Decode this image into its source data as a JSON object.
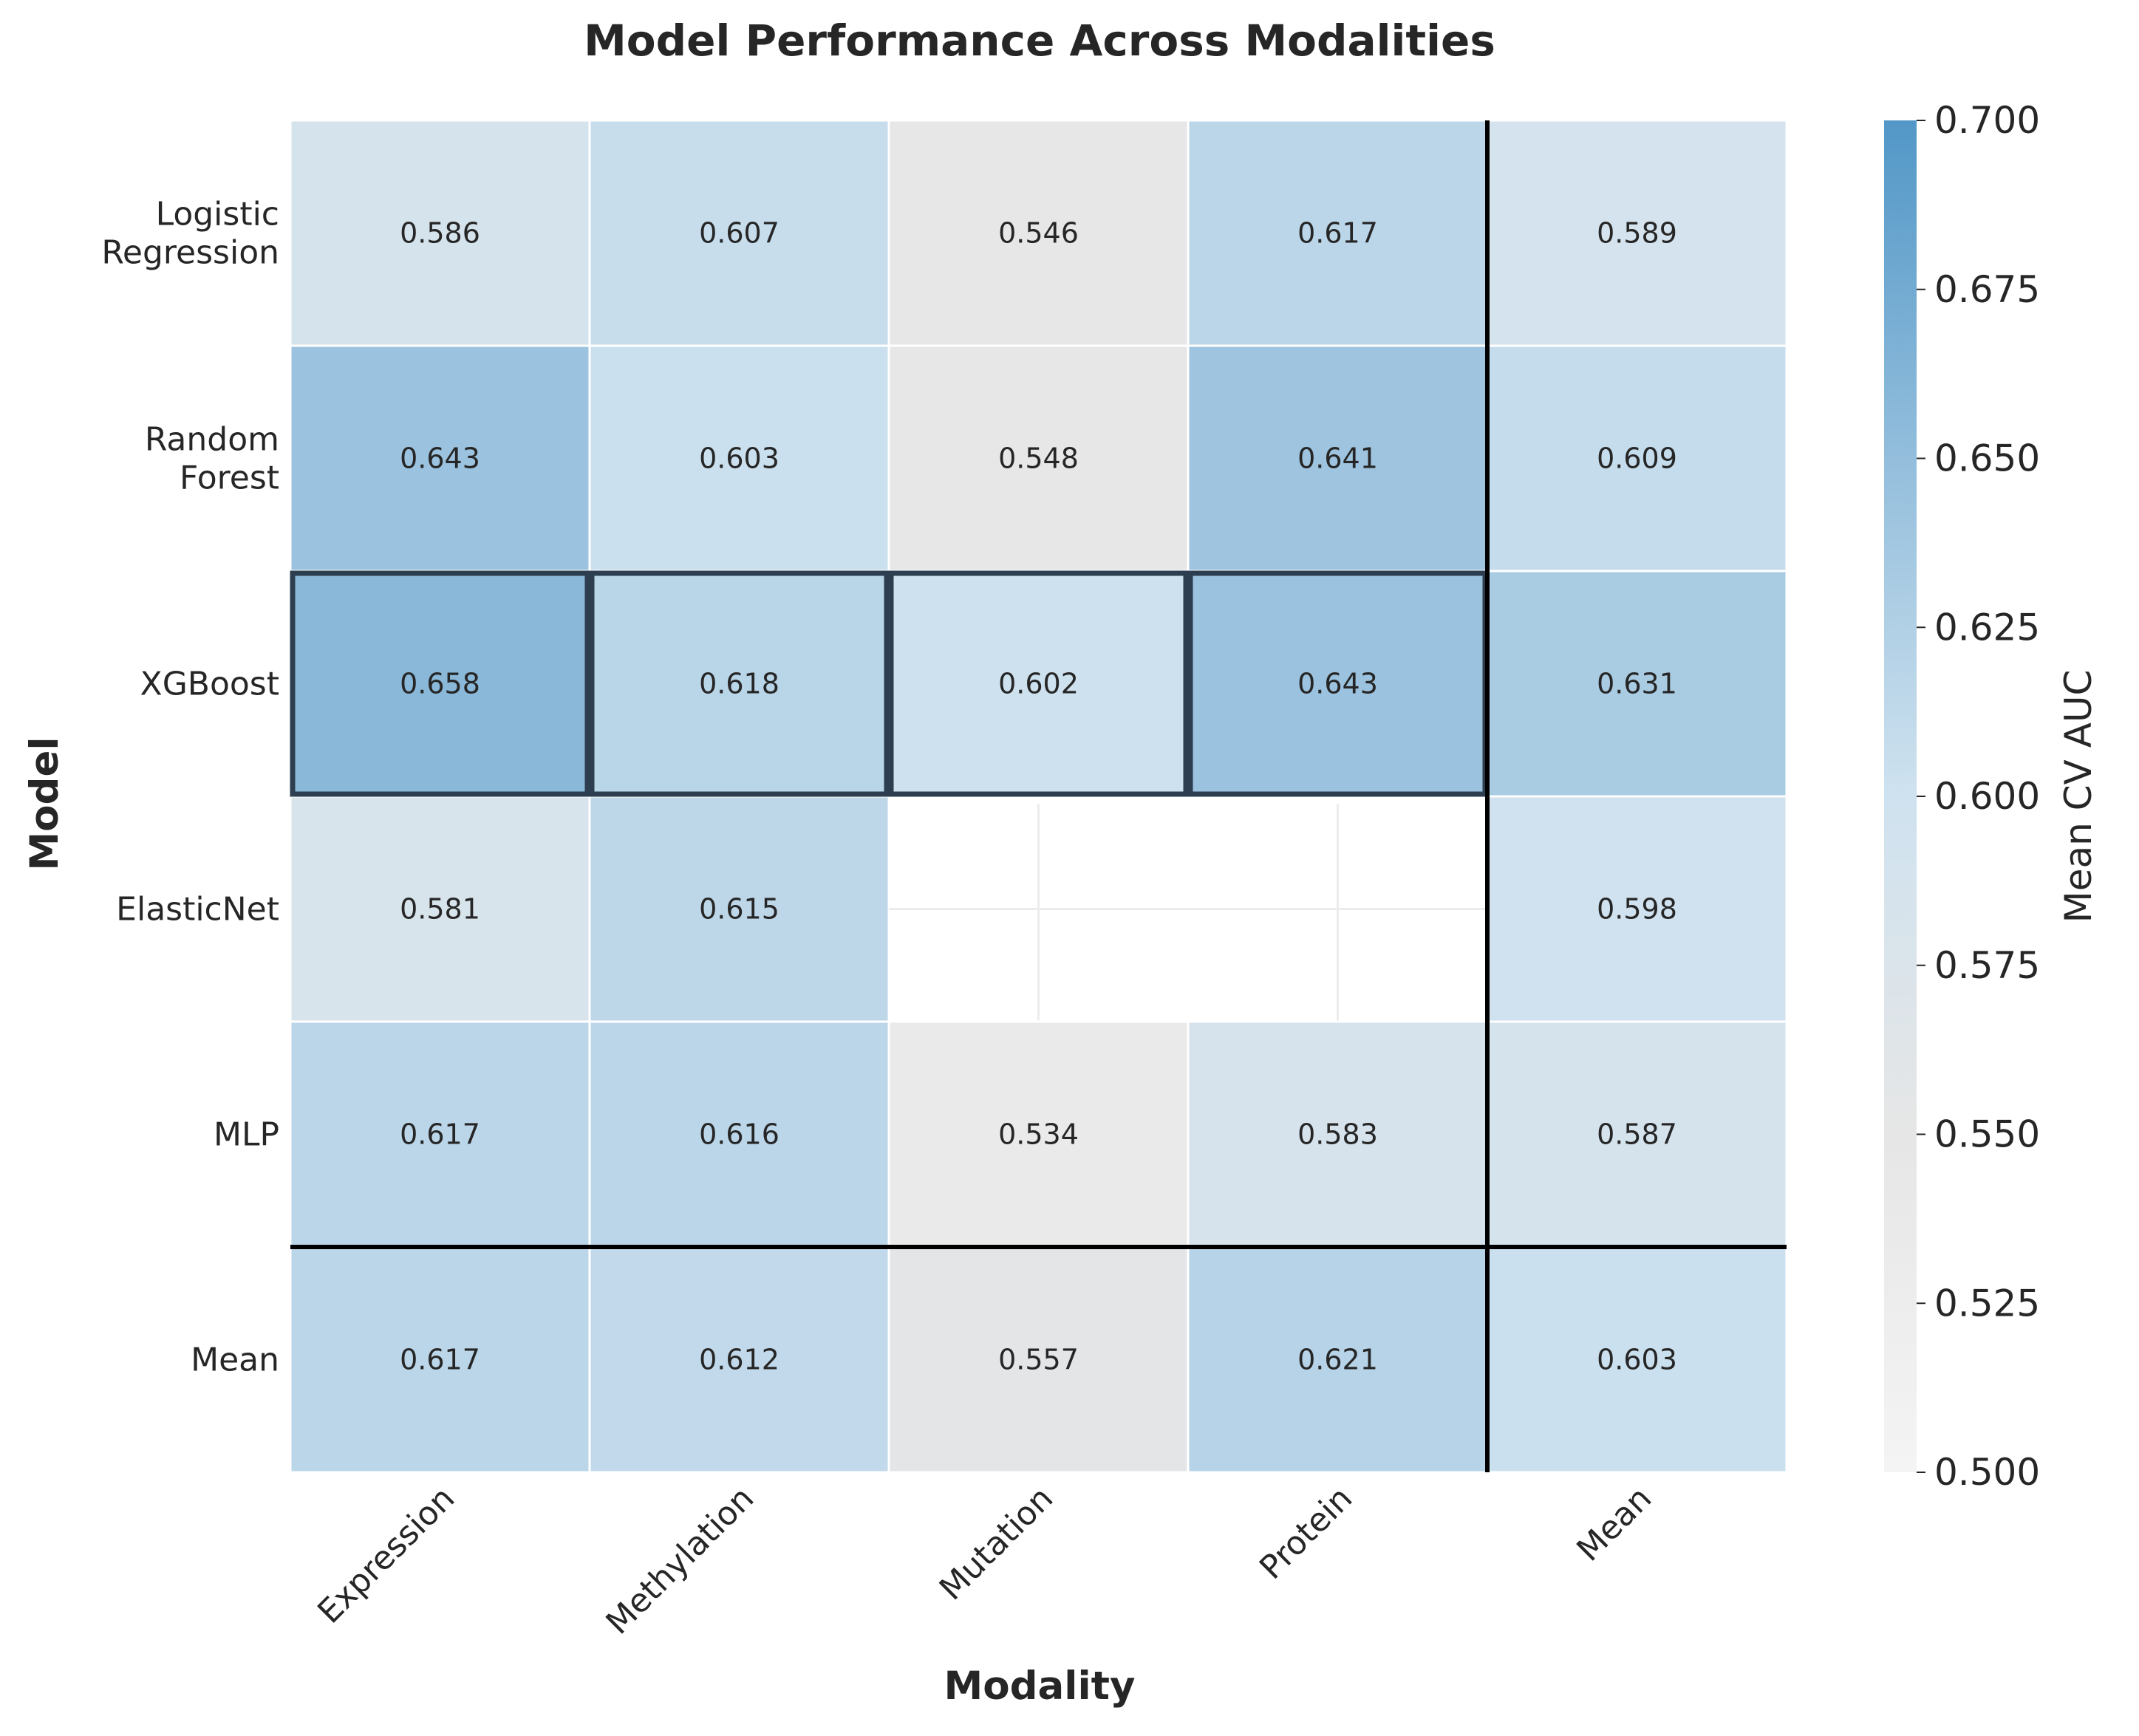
{
  "chart_data": {
    "type": "heatmap",
    "title": "Model Performance Across Modalities",
    "xlabel": "Modality",
    "ylabel": "Model",
    "columns": [
      "Expression",
      "Methylation",
      "Mutation",
      "Protein",
      "Mean"
    ],
    "rows": [
      {
        "label_lines": [
          "Logistic",
          "Regression"
        ],
        "values": [
          0.586,
          0.607,
          0.546,
          0.617,
          0.589
        ]
      },
      {
        "label_lines": [
          "Random",
          "Forest"
        ],
        "values": [
          0.643,
          0.603,
          0.548,
          0.641,
          0.609
        ]
      },
      {
        "label_lines": [
          "XGBoost"
        ],
        "values": [
          0.658,
          0.618,
          0.602,
          0.643,
          0.631
        ]
      },
      {
        "label_lines": [
          "ElasticNet"
        ],
        "values": [
          0.581,
          0.615,
          null,
          null,
          0.598
        ]
      },
      {
        "label_lines": [
          "MLP"
        ],
        "values": [
          0.617,
          0.616,
          0.534,
          0.583,
          0.587
        ]
      },
      {
        "label_lines": [
          "Mean"
        ],
        "values": [
          0.617,
          0.612,
          0.557,
          0.621,
          0.603
        ]
      }
    ],
    "highlighted_row": "XGBoost",
    "colorbar": {
      "label": "Mean CV AUC",
      "min": 0.5,
      "max": 0.7,
      "ticks": [
        "0.500",
        "0.525",
        "0.550",
        "0.575",
        "0.600",
        "0.625",
        "0.650",
        "0.675",
        "0.700"
      ],
      "color_low": "#f2f2f2",
      "color_mid": "#e6e6e6",
      "color_high": "#5a9ac8"
    }
  }
}
